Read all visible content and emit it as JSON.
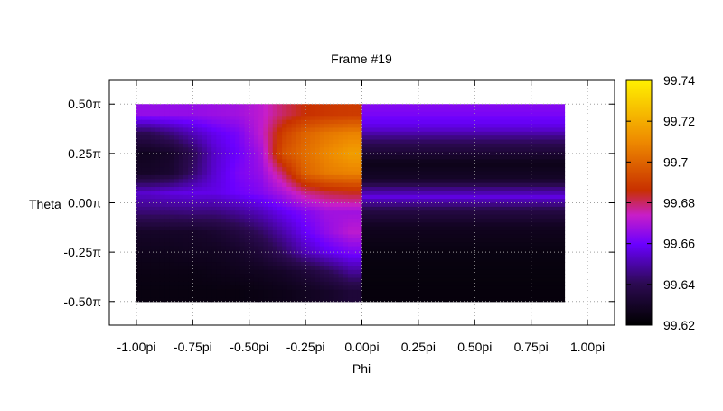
{
  "chart_data": {
    "type": "heatmap",
    "title": "Frame #19",
    "xlabel": "Phi",
    "ylabel": "Theta",
    "xlim": [
      -1.12,
      1.12
    ],
    "ylim": [
      -0.62,
      0.62
    ],
    "x_ticks": [
      {
        "value": -1.0,
        "label": "-1.00pi"
      },
      {
        "value": -0.75,
        "label": "-0.75pi"
      },
      {
        "value": -0.5,
        "label": "-0.50pi"
      },
      {
        "value": -0.25,
        "label": "-0.25pi"
      },
      {
        "value": 0.0,
        "label": "0.00pi"
      },
      {
        "value": 0.25,
        "label": "0.25pi"
      },
      {
        "value": 0.5,
        "label": "0.50pi"
      },
      {
        "value": 0.75,
        "label": "0.75pi"
      },
      {
        "value": 1.0,
        "label": "1.00pi"
      }
    ],
    "y_ticks": [
      {
        "value": 0.5,
        "label": "0.50π"
      },
      {
        "value": 0.25,
        "label": "0.25π"
      },
      {
        "value": 0.0,
        "label": "0.00π"
      },
      {
        "value": -0.25,
        "label": "-0.25π"
      },
      {
        "value": -0.5,
        "label": "-0.50π"
      }
    ],
    "grid": true,
    "colorbar": {
      "range": [
        99.62,
        99.74
      ],
      "ticks": [
        "99.74",
        "99.72",
        "99.7",
        "99.68",
        "99.66",
        "99.64",
        "99.62"
      ],
      "colors": [
        "#000000",
        "#2c0a52",
        "#6a00ff",
        "#c81ec8",
        "#c83000",
        "#ee8a00",
        "#fff000"
      ]
    },
    "data_extent": {
      "phi": [
        -1.0,
        0.9
      ],
      "theta": [
        -0.5,
        0.5
      ]
    },
    "columns_phi": [
      -0.95,
      -0.85,
      -0.75,
      -0.65,
      -0.55,
      -0.45,
      -0.35,
      -0.25,
      -0.15,
      -0.05
    ],
    "rows_theta": [
      0.45,
      0.35,
      0.25,
      0.15,
      0.05,
      -0.05,
      -0.15,
      -0.25,
      -0.35,
      -0.45
    ],
    "values_left": [
      [
        99.666,
        99.666,
        99.666,
        99.667,
        99.668,
        99.672,
        99.68,
        99.686,
        99.688,
        99.689
      ],
      [
        99.64,
        99.645,
        99.652,
        99.658,
        99.662,
        99.672,
        99.69,
        99.7,
        99.705,
        99.708
      ],
      [
        99.628,
        99.63,
        99.64,
        99.654,
        99.66,
        99.668,
        99.695,
        99.703,
        99.71,
        99.716
      ],
      [
        99.63,
        99.632,
        99.643,
        99.655,
        99.662,
        99.666,
        99.68,
        99.7,
        99.706,
        99.708
      ],
      [
        99.654,
        99.656,
        99.657,
        99.657,
        99.66,
        99.663,
        99.669,
        99.678,
        99.682,
        99.684
      ],
      [
        99.644,
        99.644,
        99.645,
        99.645,
        99.648,
        99.652,
        99.658,
        99.663,
        99.668,
        99.668
      ],
      [
        99.63,
        99.63,
        99.63,
        99.632,
        99.636,
        99.642,
        99.65,
        99.659,
        99.666,
        99.672
      ],
      [
        99.627,
        99.627,
        99.628,
        99.628,
        99.63,
        99.634,
        99.642,
        99.652,
        99.658,
        99.662
      ],
      [
        99.625,
        99.625,
        99.625,
        99.626,
        99.627,
        99.628,
        99.63,
        99.634,
        99.64,
        99.648
      ],
      [
        99.624,
        99.624,
        99.624,
        99.624,
        99.624,
        99.625,
        99.626,
        99.628,
        99.63,
        99.634
      ]
    ],
    "right_profile": [
      {
        "theta": 0.5,
        "value": 99.664
      },
      {
        "theta": 0.45,
        "value": 99.662
      },
      {
        "theta": 0.38,
        "value": 99.656
      },
      {
        "theta": 0.3,
        "value": 99.64
      },
      {
        "theta": 0.2,
        "value": 99.626
      },
      {
        "theta": 0.12,
        "value": 99.63
      },
      {
        "theta": 0.07,
        "value": 99.646
      },
      {
        "theta": 0.03,
        "value": 99.656
      },
      {
        "theta": 0.0,
        "value": 99.648
      },
      {
        "theta": -0.05,
        "value": 99.636
      },
      {
        "theta": -0.12,
        "value": 99.628
      },
      {
        "theta": -0.25,
        "value": 99.624
      },
      {
        "theta": -0.4,
        "value": 99.623
      },
      {
        "theta": -0.5,
        "value": 99.623
      }
    ]
  }
}
